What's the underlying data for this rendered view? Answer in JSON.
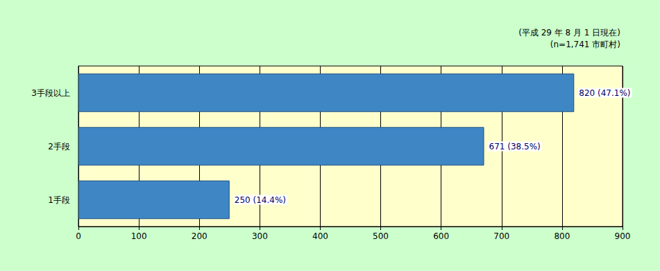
{
  "chart_data": {
    "type": "bar",
    "orientation": "horizontal",
    "annotations": [
      "(平成 29 年 8 月 1 日現在)",
      "(n=1,741 市町村)"
    ],
    "categories": [
      "1手段",
      "2手段",
      "3手段以上"
    ],
    "values": [
      250,
      671,
      820
    ],
    "value_labels": [
      "250 (14.4%)",
      "671 (38.5%)",
      "820 (47.1%)"
    ],
    "color": "#3f86c4",
    "xlim": [
      0,
      900
    ],
    "xticks": [
      0,
      100,
      200,
      300,
      400,
      500,
      600,
      700,
      800,
      900
    ],
    "grid": true,
    "data_labels": true
  }
}
